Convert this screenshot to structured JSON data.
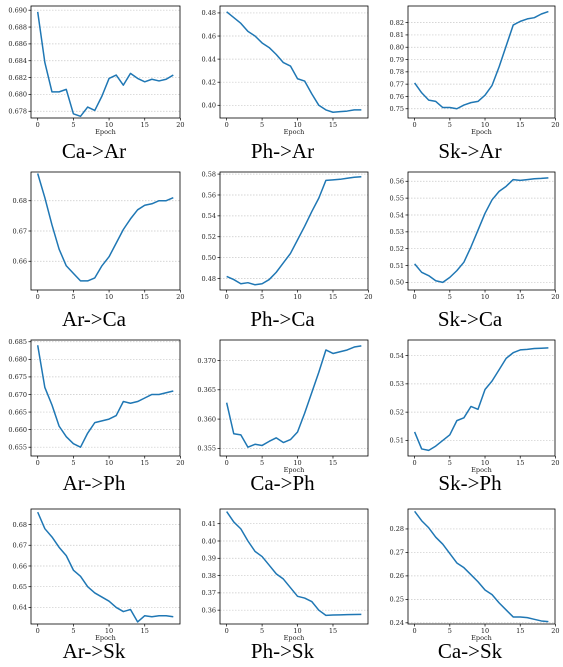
{
  "figure": {
    "line_color": "#1f77b4"
  },
  "chart_data": [
    {
      "type": "line",
      "caption": "Ca->Ar",
      "xlabel": "Epoch",
      "xlim": [
        0,
        19
      ],
      "ylim": [
        0.6772,
        0.6905
      ],
      "xticks": [
        0,
        5,
        10,
        15,
        20
      ],
      "yticks": [
        0.678,
        0.68,
        0.682,
        0.684,
        0.686,
        0.688,
        0.69
      ],
      "decimals": 3,
      "grid": "y",
      "series": [
        {
          "x": [
            0,
            1,
            2,
            3,
            4,
            5,
            6,
            7,
            8,
            9,
            10,
            11,
            12,
            13,
            14,
            15,
            16,
            17,
            18,
            19
          ],
          "values": [
            0.6898,
            0.6838,
            0.6803,
            0.6803,
            0.6806,
            0.6777,
            0.6774,
            0.6785,
            0.6781,
            0.6798,
            0.6819,
            0.6823,
            0.6811,
            0.6825,
            0.6819,
            0.6815,
            0.6818,
            0.6816,
            0.6818,
            0.6823
          ]
        }
      ]
    },
    {
      "type": "line",
      "caption": "Ph->Ar",
      "xlabel": "Epoch",
      "xlim": [
        0,
        19
      ],
      "ylim": [
        0.389,
        0.486
      ],
      "xticks": [
        0,
        5,
        10,
        15
      ],
      "yticks": [
        0.4,
        0.42,
        0.44,
        0.46,
        0.48
      ],
      "decimals": 2,
      "grid": "y",
      "series": [
        {
          "x": [
            0,
            1,
            2,
            3,
            4,
            5,
            6,
            7,
            8,
            9,
            10,
            11,
            12,
            13,
            14,
            15,
            16,
            17,
            18,
            19
          ],
          "values": [
            0.481,
            0.476,
            0.471,
            0.464,
            0.46,
            0.454,
            0.45,
            0.444,
            0.437,
            0.434,
            0.423,
            0.421,
            0.41,
            0.4,
            0.396,
            0.394,
            0.3945,
            0.395,
            0.396,
            0.396
          ]
        }
      ]
    },
    {
      "type": "line",
      "caption": "Sk->Ar",
      "xlabel": "Epoch",
      "xlim": [
        0,
        19
      ],
      "ylim": [
        0.7425,
        0.8335
      ],
      "xticks": [
        0,
        5,
        10,
        15,
        20
      ],
      "yticks": [
        0.75,
        0.76,
        0.77,
        0.78,
        0.79,
        0.8,
        0.81,
        0.82
      ],
      "decimals": 2,
      "grid": "y",
      "series": [
        {
          "x": [
            0,
            1,
            2,
            3,
            4,
            5,
            6,
            7,
            8,
            9,
            10,
            11,
            12,
            13,
            14,
            15,
            16,
            17,
            18,
            19
          ],
          "values": [
            0.771,
            0.763,
            0.757,
            0.756,
            0.751,
            0.751,
            0.75,
            0.753,
            0.755,
            0.756,
            0.761,
            0.769,
            0.784,
            0.801,
            0.818,
            0.821,
            0.823,
            0.824,
            0.827,
            0.829
          ]
        }
      ]
    },
    {
      "type": "line",
      "caption": "Ar->Ca",
      "xlabel": "",
      "xlim": [
        0,
        19
      ],
      "ylim": [
        0.6505,
        0.6895
      ],
      "xticks": [
        0,
        5,
        10,
        15,
        20
      ],
      "yticks": [
        0.66,
        0.67,
        0.68,
        0.69
      ],
      "decimals": 2,
      "grid": "y",
      "series": [
        {
          "x": [
            0,
            1,
            2,
            3,
            4,
            5,
            6,
            7,
            8,
            9,
            10,
            11,
            12,
            13,
            14,
            15,
            16,
            17,
            18,
            19
          ],
          "values": [
            0.689,
            0.681,
            0.672,
            0.664,
            0.6585,
            0.656,
            0.6535,
            0.6535,
            0.6545,
            0.6585,
            0.6615,
            0.666,
            0.6705,
            0.674,
            0.677,
            0.6785,
            0.679,
            0.68,
            0.68,
            0.681
          ]
        }
      ]
    },
    {
      "type": "line",
      "caption": "Ph->Ca",
      "xlabel": "",
      "xlim": [
        0,
        19
      ],
      "ylim": [
        0.469,
        0.582
      ],
      "xticks": [
        0,
        5,
        10,
        15,
        20
      ],
      "yticks": [
        0.48,
        0.5,
        0.52,
        0.54,
        0.56,
        0.58
      ],
      "decimals": 2,
      "grid": "y",
      "series": [
        {
          "x": [
            0,
            1,
            2,
            3,
            4,
            5,
            6,
            7,
            8,
            9,
            10,
            11,
            12,
            13,
            14,
            15,
            16,
            17,
            18,
            19
          ],
          "values": [
            0.482,
            0.479,
            0.475,
            0.476,
            0.474,
            0.475,
            0.479,
            0.486,
            0.495,
            0.504,
            0.517,
            0.53,
            0.544,
            0.557,
            0.574,
            0.5745,
            0.575,
            0.576,
            0.577,
            0.5775
          ]
        }
      ]
    },
    {
      "type": "line",
      "caption": "Sk->Ca",
      "xlabel": "",
      "xlim": [
        0,
        19
      ],
      "ylim": [
        0.4955,
        0.5655
      ],
      "xticks": [
        0,
        5,
        10,
        15,
        20
      ],
      "yticks": [
        0.5,
        0.51,
        0.52,
        0.53,
        0.54,
        0.55,
        0.56
      ],
      "decimals": 2,
      "grid": "y",
      "series": [
        {
          "x": [
            0,
            1,
            2,
            3,
            4,
            5,
            6,
            7,
            8,
            9,
            10,
            11,
            12,
            13,
            14,
            15,
            16,
            17,
            18,
            19
          ],
          "values": [
            0.511,
            0.506,
            0.504,
            0.501,
            0.5,
            0.503,
            0.507,
            0.512,
            0.521,
            0.531,
            0.541,
            0.549,
            0.554,
            0.557,
            0.561,
            0.5605,
            0.561,
            0.5615,
            0.5617,
            0.562
          ]
        }
      ]
    },
    {
      "type": "line",
      "caption": "Ar->Ph",
      "xlabel": "",
      "xlim": [
        0,
        19
      ],
      "ylim": [
        0.6525,
        0.6855
      ],
      "xticks": [
        0,
        5,
        10,
        15,
        20
      ],
      "yticks": [
        0.655,
        0.66,
        0.665,
        0.67,
        0.675,
        0.68,
        0.685
      ],
      "decimals": 3,
      "grid": "y",
      "series": [
        {
          "x": [
            0,
            1,
            2,
            3,
            4,
            5,
            6,
            7,
            8,
            9,
            10,
            11,
            12,
            13,
            14,
            15,
            16,
            17,
            18,
            19
          ],
          "values": [
            0.684,
            0.672,
            0.667,
            0.661,
            0.658,
            0.656,
            0.655,
            0.659,
            0.662,
            0.6625,
            0.663,
            0.664,
            0.668,
            0.6675,
            0.668,
            0.669,
            0.67,
            0.67,
            0.6705,
            0.671
          ]
        }
      ]
    },
    {
      "type": "line",
      "caption": "Ca->Ph",
      "xlabel": "Epoch",
      "xlim": [
        0,
        19
      ],
      "ylim": [
        0.3537,
        0.3735
      ],
      "xticks": [
        0,
        5,
        10,
        15
      ],
      "yticks": [
        0.355,
        0.36,
        0.365,
        0.37
      ],
      "decimals": 3,
      "grid": "y",
      "series": [
        {
          "x": [
            0,
            1,
            2,
            3,
            4,
            5,
            6,
            7,
            8,
            9,
            10,
            11,
            12,
            13,
            14,
            15,
            16,
            17,
            18,
            19
          ],
          "values": [
            0.3628,
            0.3575,
            0.3573,
            0.3552,
            0.3557,
            0.3555,
            0.3562,
            0.3568,
            0.356,
            0.3565,
            0.3578,
            0.361,
            0.3645,
            0.368,
            0.3718,
            0.3712,
            0.3715,
            0.3718,
            0.3723,
            0.3725
          ]
        }
      ]
    },
    {
      "type": "line",
      "caption": "Sk->Ph",
      "xlabel": "Epoch",
      "xlim": [
        0,
        19
      ],
      "ylim": [
        0.5045,
        0.5455
      ],
      "xticks": [
        0,
        5,
        10,
        15,
        20
      ],
      "yticks": [
        0.51,
        0.52,
        0.53,
        0.54
      ],
      "decimals": 2,
      "grid": "y",
      "series": [
        {
          "x": [
            0,
            1,
            2,
            3,
            4,
            5,
            6,
            7,
            8,
            9,
            10,
            11,
            12,
            13,
            14,
            15,
            16,
            17,
            18,
            19
          ],
          "values": [
            0.513,
            0.507,
            0.5065,
            0.508,
            0.51,
            0.512,
            0.517,
            0.518,
            0.522,
            0.521,
            0.528,
            0.531,
            0.535,
            0.539,
            0.541,
            0.542,
            0.5422,
            0.5425,
            0.5426,
            0.5427
          ]
        }
      ]
    },
    {
      "type": "line",
      "caption": "Ar->Sk",
      "xlabel": "Epoch",
      "xlim": [
        0,
        19
      ],
      "ylim": [
        0.632,
        0.6875
      ],
      "xticks": [
        0,
        5,
        10,
        15
      ],
      "yticks": [
        0.64,
        0.65,
        0.66,
        0.67,
        0.68
      ],
      "decimals": 2,
      "grid": "y",
      "series": [
        {
          "x": [
            0,
            1,
            2,
            3,
            4,
            5,
            6,
            7,
            8,
            9,
            10,
            11,
            12,
            13,
            14,
            15,
            16,
            17,
            18,
            19
          ],
          "values": [
            0.686,
            0.678,
            0.674,
            0.669,
            0.665,
            0.658,
            0.655,
            0.65,
            0.647,
            0.645,
            0.643,
            0.64,
            0.638,
            0.639,
            0.633,
            0.636,
            0.6355,
            0.636,
            0.636,
            0.6355
          ]
        }
      ]
    },
    {
      "type": "line",
      "caption": "Ph->Sk",
      "xlabel": "Epoch",
      "xlim": [
        0,
        19
      ],
      "ylim": [
        0.352,
        0.4185
      ],
      "xticks": [
        0,
        5,
        10,
        15
      ],
      "yticks": [
        0.36,
        0.37,
        0.38,
        0.39,
        0.4,
        0.41
      ],
      "decimals": 2,
      "grid": "y",
      "series": [
        {
          "x": [
            0,
            1,
            2,
            3,
            4,
            5,
            6,
            7,
            8,
            9,
            10,
            11,
            12,
            13,
            14,
            15,
            16,
            17,
            18,
            19
          ],
          "values": [
            0.417,
            0.411,
            0.407,
            0.4,
            0.394,
            0.391,
            0.386,
            0.381,
            0.378,
            0.373,
            0.368,
            0.367,
            0.365,
            0.36,
            0.357,
            0.3572,
            0.3573,
            0.3574,
            0.3575,
            0.3576
          ]
        }
      ]
    },
    {
      "type": "line",
      "caption": "Ca->Sk",
      "xlabel": "Epoch",
      "xlim": [
        0,
        19
      ],
      "ylim": [
        0.2395,
        0.2885
      ],
      "xticks": [
        0,
        5,
        10,
        15,
        20
      ],
      "yticks": [
        0.24,
        0.25,
        0.26,
        0.27,
        0.28
      ],
      "decimals": 2,
      "grid": "y",
      "series": [
        {
          "x": [
            0,
            1,
            2,
            3,
            4,
            5,
            6,
            7,
            8,
            9,
            10,
            11,
            12,
            13,
            14,
            15,
            16,
            17,
            18,
            19
          ],
          "values": [
            0.2875,
            0.2835,
            0.2805,
            0.2765,
            0.2735,
            0.2695,
            0.2655,
            0.2635,
            0.2605,
            0.2575,
            0.254,
            0.252,
            0.2485,
            0.2455,
            0.2425,
            0.2425,
            0.2422,
            0.2415,
            0.2408,
            0.2405
          ]
        }
      ]
    }
  ]
}
